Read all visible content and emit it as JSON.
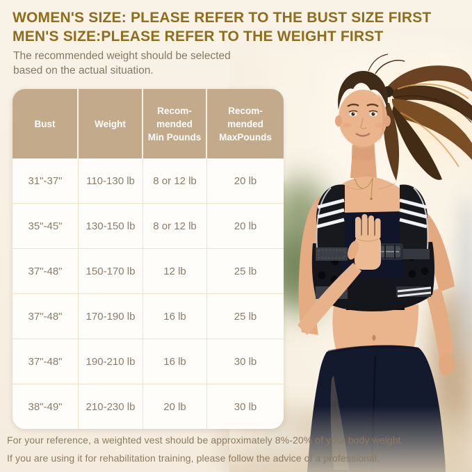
{
  "header": {
    "title_lines": [
      "WOMEN'S SIZE: PLEASE REFER TO THE BUST SIZE FIRST",
      "MEN'S SIZE:PLEASE REFER TO THE WEIGHT FIRST"
    ],
    "subtitle_lines": [
      "The recommended weight should be selected",
      "based on the actual situation."
    ]
  },
  "table": {
    "columns": [
      {
        "id": "bust",
        "lines": [
          "Bust"
        ]
      },
      {
        "id": "weight",
        "lines": [
          "Weight"
        ]
      },
      {
        "id": "rec-min",
        "lines": [
          "Recom-",
          "mended",
          "Min Pounds"
        ]
      },
      {
        "id": "rec-max",
        "lines": [
          "Recom-",
          "mended",
          "MaxPounds"
        ]
      }
    ],
    "rows": [
      [
        "31\"-37\"",
        "110-130 lb",
        "8 or 12 lb",
        "20 lb"
      ],
      [
        "35\"-45\"",
        "130-150 lb",
        "8 or 12 lb",
        "20 lb"
      ],
      [
        "37\"-48\"",
        "150-170 lb",
        "12 lb",
        "25 lb"
      ],
      [
        "37\"-48\"",
        "170-190 lb",
        "16 lb",
        "25 lb"
      ],
      [
        "37\"-48\"",
        "190-210 lb",
        "16 lb",
        "30 lb"
      ],
      [
        "38\"-49\"",
        "210-230 lb",
        "20 lb",
        "30 lb"
      ]
    ]
  },
  "footer": {
    "lines": [
      "For your reference, a weighted vest should be approximately 8%-20% of your body weight.",
      "If you are using it for rehabilitation training, please follow the advice of a professional."
    ]
  },
  "photo": {
    "description": "Girl running outdoors wearing a black weighted vest"
  },
  "colors": {
    "background": "#f7efe2",
    "title_text": "#8e6d1d",
    "subtitle_text": "#847862",
    "table_header_bg": "#c3aa8b",
    "table_header_text": "#ffffff",
    "table_cell_text": "#8a7c6a",
    "footer_text": "#8d7a5e",
    "vest": "#17191d"
  }
}
